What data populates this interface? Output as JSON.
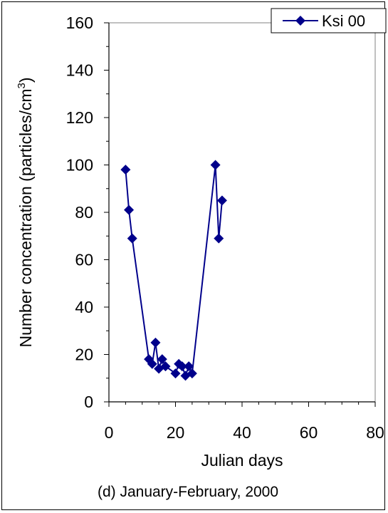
{
  "chart_data": {
    "type": "line",
    "title": "",
    "caption": "(d) January-February, 2000",
    "xlabel": "Julian days",
    "ylabel": "Number concentration (particles/cm",
    "ylabel_sup": "3",
    "ylabel_close": ")",
    "xlim": [
      0,
      80
    ],
    "ylim": [
      0,
      160
    ],
    "xticks": [
      0,
      20,
      40,
      60,
      80
    ],
    "yticks": [
      0,
      20,
      40,
      60,
      80,
      100,
      120,
      140,
      160
    ],
    "xtick_labels": [
      "0",
      "20",
      "40",
      "60",
      "80"
    ],
    "ytick_labels": [
      "0",
      "20",
      "40",
      "60",
      "80",
      "100",
      "120",
      "140",
      "160"
    ],
    "grid": false,
    "legend_position": "top-right",
    "colors": {
      "series": "#00008b",
      "axis": "#000000",
      "background": "#ffffff"
    },
    "series": [
      {
        "name": "Ksi 00",
        "marker": "diamond",
        "x": [
          5,
          6,
          7,
          12,
          13,
          14,
          15,
          16,
          17,
          20,
          21,
          22,
          23,
          24,
          25,
          32,
          33,
          34
        ],
        "y": [
          98,
          81,
          69,
          18,
          16,
          25,
          14,
          18,
          15,
          12,
          16,
          15,
          11,
          15,
          12,
          100,
          69,
          85
        ]
      }
    ]
  }
}
